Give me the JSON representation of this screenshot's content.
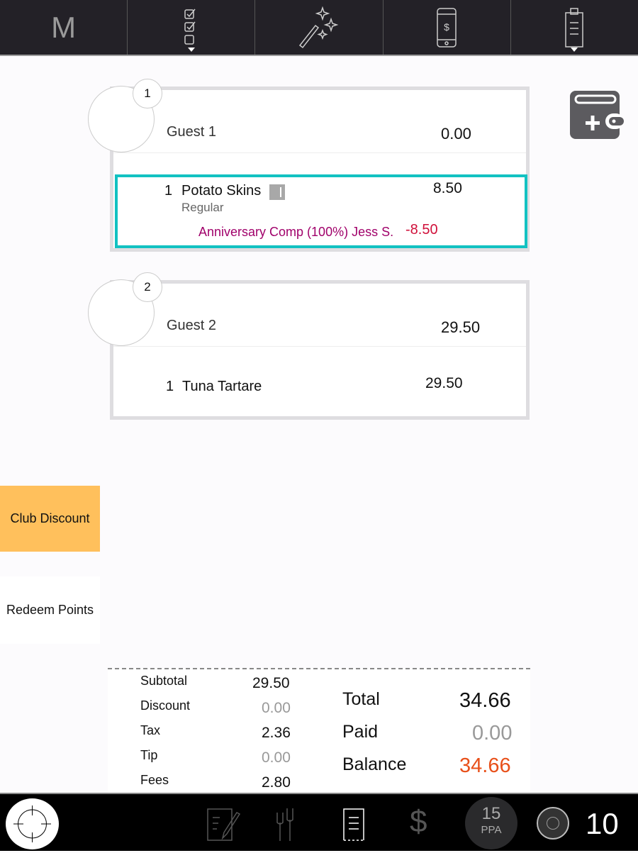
{
  "top_bar": {
    "logo": "M",
    "icons": [
      "checklist-icon",
      "magic-wand-icon",
      "mobile-pay-icon",
      "clipboard-icon"
    ]
  },
  "guests": [
    {
      "seat": "1",
      "name": "Guest 1",
      "amount": "0.00",
      "items": [
        {
          "qty": "1",
          "name": "Potato Skins",
          "modifier": "Regular",
          "price": "8.50",
          "discount_label": "Anniversary Comp (100%) Jess S.",
          "discount_amount": "-8.50",
          "selected": true
        }
      ]
    },
    {
      "seat": "2",
      "name": "Guest 2",
      "amount": "29.50",
      "items": [
        {
          "qty": "1",
          "name": "Tuna Tartare",
          "price": "29.50"
        }
      ]
    }
  ],
  "side_buttons": {
    "club_discount": "Club Discount",
    "redeem_points": "Redeem Points"
  },
  "totals": {
    "subtotal_label": "Subtotal",
    "subtotal": "29.50",
    "discount_label": "Discount",
    "discount": "0.00",
    "tax_label": "Tax",
    "tax": "2.36",
    "tip_label": "Tip",
    "tip": "0.00",
    "fees_label": "Fees",
    "fees": "2.80",
    "total_label": "Total",
    "total": "34.66",
    "paid_label": "Paid",
    "paid": "0.00",
    "balance_label": "Balance",
    "balance": "34.66"
  },
  "bottom_bar": {
    "ppa_value": "15",
    "ppa_label": "PPA",
    "count": "10"
  },
  "colors": {
    "highlight": "#12c2c2",
    "club_discount": "#ffc05c",
    "discount_text": "#a0006a",
    "negative": "#d0103a",
    "balance": "#e8501a"
  }
}
